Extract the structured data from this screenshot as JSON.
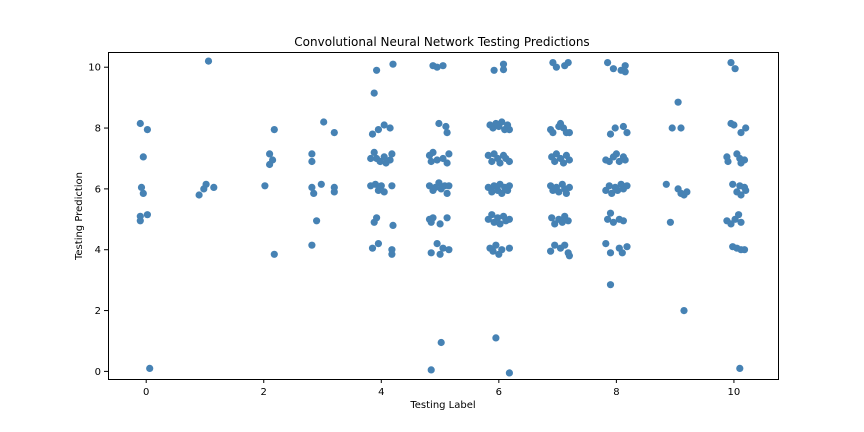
{
  "chart_data": {
    "type": "scatter",
    "title": "Convolutional Neural Network Testing Predictions",
    "xlabel": "Testing Label",
    "ylabel": "Testing Prediction",
    "xlim": [
      -0.65,
      10.75
    ],
    "ylim": [
      -0.25,
      10.5
    ],
    "xticks": [
      0,
      2,
      4,
      6,
      8,
      10
    ],
    "yticks": [
      0,
      2,
      4,
      6,
      8,
      10
    ],
    "grid": false,
    "marker_color": "#4682b4",
    "series": [
      {
        "points": [
          [
            -0.1,
            8.15
          ],
          [
            0.02,
            7.95
          ],
          [
            -0.05,
            7.05
          ],
          [
            -0.08,
            6.05
          ],
          [
            -0.05,
            5.85
          ],
          [
            -0.1,
            5.1
          ],
          [
            0.02,
            5.15
          ],
          [
            -0.1,
            4.95
          ],
          [
            0.06,
            0.1
          ],
          [
            0.9,
            5.8
          ],
          [
            0.98,
            6.0
          ],
          [
            1.02,
            6.15
          ],
          [
            1.15,
            6.05
          ],
          [
            1.06,
            10.2
          ],
          [
            2.02,
            6.1
          ],
          [
            2.1,
            7.15
          ],
          [
            2.15,
            6.95
          ],
          [
            2.1,
            6.8
          ],
          [
            2.18,
            7.95
          ],
          [
            2.18,
            3.85
          ],
          [
            2.82,
            7.15
          ],
          [
            2.82,
            6.9
          ],
          [
            2.82,
            6.05
          ],
          [
            2.85,
            5.85
          ],
          [
            2.9,
            4.95
          ],
          [
            2.82,
            4.15
          ],
          [
            2.98,
            6.15
          ],
          [
            3.02,
            8.2
          ],
          [
            3.2,
            7.85
          ],
          [
            3.2,
            6.05
          ],
          [
            3.2,
            5.9
          ],
          [
            3.88,
            9.15
          ],
          [
            3.92,
            9.9
          ],
          [
            4.2,
            10.1
          ],
          [
            3.85,
            7.8
          ],
          [
            3.95,
            7.95
          ],
          [
            4.05,
            8.1
          ],
          [
            4.15,
            8.0
          ],
          [
            3.82,
            7.0
          ],
          [
            3.88,
            7.2
          ],
          [
            3.92,
            7.0
          ],
          [
            3.98,
            6.9
          ],
          [
            4.05,
            7.05
          ],
          [
            4.08,
            6.85
          ],
          [
            4.15,
            6.95
          ],
          [
            4.18,
            7.15
          ],
          [
            3.82,
            6.1
          ],
          [
            3.9,
            6.15
          ],
          [
            3.95,
            5.95
          ],
          [
            4.0,
            6.1
          ],
          [
            4.05,
            5.9
          ],
          [
            4.18,
            6.1
          ],
          [
            3.88,
            4.9
          ],
          [
            3.92,
            5.05
          ],
          [
            4.2,
            4.8
          ],
          [
            3.85,
            4.05
          ],
          [
            3.95,
            4.2
          ],
          [
            4.18,
            4.0
          ],
          [
            4.18,
            3.85
          ],
          [
            4.88,
            10.05
          ],
          [
            4.95,
            10.0
          ],
          [
            5.05,
            10.05
          ],
          [
            4.98,
            8.15
          ],
          [
            5.1,
            8.05
          ],
          [
            5.12,
            7.85
          ],
          [
            4.82,
            7.1
          ],
          [
            4.85,
            6.9
          ],
          [
            4.88,
            7.2
          ],
          [
            4.95,
            6.95
          ],
          [
            5.05,
            7.0
          ],
          [
            5.12,
            6.85
          ],
          [
            5.15,
            7.15
          ],
          [
            4.82,
            6.1
          ],
          [
            4.88,
            5.95
          ],
          [
            4.92,
            6.05
          ],
          [
            4.98,
            6.2
          ],
          [
            5.02,
            6.0
          ],
          [
            5.08,
            6.1
          ],
          [
            5.12,
            5.85
          ],
          [
            5.15,
            6.1
          ],
          [
            4.82,
            5.0
          ],
          [
            4.85,
            4.9
          ],
          [
            4.88,
            5.05
          ],
          [
            5.0,
            4.85
          ],
          [
            5.12,
            5.05
          ],
          [
            4.85,
            3.9
          ],
          [
            4.95,
            4.2
          ],
          [
            5.0,
            3.85
          ],
          [
            5.05,
            4.05
          ],
          [
            5.15,
            4.0
          ],
          [
            4.85,
            0.05
          ],
          [
            5.02,
            0.95
          ],
          [
            5.92,
            9.9
          ],
          [
            6.08,
            10.1
          ],
          [
            6.08,
            9.92
          ],
          [
            5.85,
            8.1
          ],
          [
            5.9,
            8.0
          ],
          [
            5.95,
            8.15
          ],
          [
            6.0,
            8.05
          ],
          [
            6.05,
            8.2
          ],
          [
            6.1,
            7.95
          ],
          [
            6.15,
            8.1
          ],
          [
            6.18,
            7.95
          ],
          [
            5.82,
            7.1
          ],
          [
            5.88,
            6.9
          ],
          [
            5.92,
            7.15
          ],
          [
            5.98,
            7.0
          ],
          [
            6.02,
            6.85
          ],
          [
            6.08,
            7.1
          ],
          [
            6.12,
            7.0
          ],
          [
            6.18,
            6.9
          ],
          [
            5.82,
            6.05
          ],
          [
            5.88,
            5.9
          ],
          [
            5.92,
            6.1
          ],
          [
            5.98,
            5.95
          ],
          [
            6.02,
            6.15
          ],
          [
            6.05,
            5.85
          ],
          [
            6.1,
            6.05
          ],
          [
            6.15,
            5.95
          ],
          [
            6.18,
            6.1
          ],
          [
            5.82,
            5.0
          ],
          [
            5.88,
            5.15
          ],
          [
            5.92,
            4.9
          ],
          [
            5.98,
            5.05
          ],
          [
            6.02,
            4.85
          ],
          [
            6.08,
            5.1
          ],
          [
            6.12,
            4.95
          ],
          [
            6.18,
            5.0
          ],
          [
            5.85,
            4.05
          ],
          [
            5.9,
            3.95
          ],
          [
            5.95,
            4.15
          ],
          [
            6.0,
            3.85
          ],
          [
            6.05,
            4.0
          ],
          [
            6.18,
            4.05
          ],
          [
            5.95,
            1.1
          ],
          [
            6.18,
            -0.05
          ],
          [
            6.92,
            10.15
          ],
          [
            6.98,
            10.0
          ],
          [
            7.12,
            10.05
          ],
          [
            7.18,
            10.15
          ],
          [
            6.88,
            7.95
          ],
          [
            6.92,
            7.85
          ],
          [
            7.02,
            8.05
          ],
          [
            7.05,
            8.15
          ],
          [
            7.1,
            8.0
          ],
          [
            7.15,
            7.85
          ],
          [
            7.2,
            7.85
          ],
          [
            6.9,
            7.05
          ],
          [
            6.95,
            6.9
          ],
          [
            6.98,
            7.15
          ],
          [
            7.05,
            7.0
          ],
          [
            7.1,
            6.85
          ],
          [
            7.15,
            7.1
          ],
          [
            7.2,
            6.95
          ],
          [
            6.88,
            6.1
          ],
          [
            6.92,
            5.95
          ],
          [
            6.98,
            6.05
          ],
          [
            7.02,
            5.9
          ],
          [
            7.08,
            6.15
          ],
          [
            7.12,
            6.0
          ],
          [
            7.15,
            5.85
          ],
          [
            7.2,
            6.05
          ],
          [
            6.9,
            5.05
          ],
          [
            6.95,
            4.85
          ],
          [
            7.02,
            5.0
          ],
          [
            7.08,
            4.9
          ],
          [
            7.12,
            5.1
          ],
          [
            7.18,
            4.95
          ],
          [
            6.88,
            3.95
          ],
          [
            6.95,
            4.15
          ],
          [
            7.05,
            4.05
          ],
          [
            7.12,
            4.15
          ],
          [
            7.18,
            3.9
          ],
          [
            7.2,
            3.8
          ],
          [
            7.85,
            10.15
          ],
          [
            7.95,
            9.95
          ],
          [
            8.08,
            9.9
          ],
          [
            8.15,
            10.05
          ],
          [
            8.15,
            9.85
          ],
          [
            7.9,
            7.8
          ],
          [
            7.98,
            8.0
          ],
          [
            8.12,
            8.05
          ],
          [
            8.18,
            7.85
          ],
          [
            7.82,
            6.95
          ],
          [
            7.88,
            6.9
          ],
          [
            7.95,
            7.05
          ],
          [
            8.0,
            7.15
          ],
          [
            8.05,
            6.9
          ],
          [
            8.12,
            7.05
          ],
          [
            8.15,
            6.95
          ],
          [
            7.82,
            5.95
          ],
          [
            7.88,
            6.1
          ],
          [
            7.92,
            5.85
          ],
          [
            7.98,
            6.05
          ],
          [
            8.02,
            5.95
          ],
          [
            8.08,
            6.15
          ],
          [
            8.12,
            6.0
          ],
          [
            8.18,
            6.1
          ],
          [
            7.85,
            5.0
          ],
          [
            7.9,
            5.2
          ],
          [
            7.95,
            4.9
          ],
          [
            8.05,
            5.0
          ],
          [
            8.12,
            4.95
          ],
          [
            7.82,
            4.2
          ],
          [
            7.9,
            3.9
          ],
          [
            8.05,
            4.05
          ],
          [
            8.1,
            3.9
          ],
          [
            8.18,
            4.1
          ],
          [
            7.9,
            2.85
          ],
          [
            8.85,
            6.15
          ],
          [
            8.92,
            4.9
          ],
          [
            8.95,
            8.0
          ],
          [
            9.05,
            8.85
          ],
          [
            9.1,
            8.0
          ],
          [
            9.05,
            6.0
          ],
          [
            9.1,
            5.85
          ],
          [
            9.15,
            5.8
          ],
          [
            9.2,
            5.9
          ],
          [
            9.15,
            2.0
          ],
          [
            9.88,
            7.05
          ],
          [
            9.9,
            6.9
          ],
          [
            9.95,
            8.15
          ],
          [
            10.0,
            8.1
          ],
          [
            10.05,
            7.15
          ],
          [
            10.1,
            7.0
          ],
          [
            10.12,
            6.85
          ],
          [
            10.18,
            6.95
          ],
          [
            10.12,
            7.85
          ],
          [
            10.2,
            8.0
          ],
          [
            9.98,
            6.15
          ],
          [
            10.05,
            5.9
          ],
          [
            10.1,
            6.1
          ],
          [
            10.12,
            5.8
          ],
          [
            10.18,
            6.05
          ],
          [
            10.2,
            5.95
          ],
          [
            9.88,
            4.95
          ],
          [
            9.95,
            4.85
          ],
          [
            10.02,
            5.0
          ],
          [
            10.08,
            5.15
          ],
          [
            10.12,
            4.9
          ],
          [
            9.98,
            4.1
          ],
          [
            10.05,
            4.05
          ],
          [
            10.12,
            4.0
          ],
          [
            10.18,
            4.0
          ],
          [
            9.95,
            10.15
          ],
          [
            10.02,
            9.95
          ],
          [
            10.1,
            0.1
          ]
        ]
      }
    ]
  }
}
